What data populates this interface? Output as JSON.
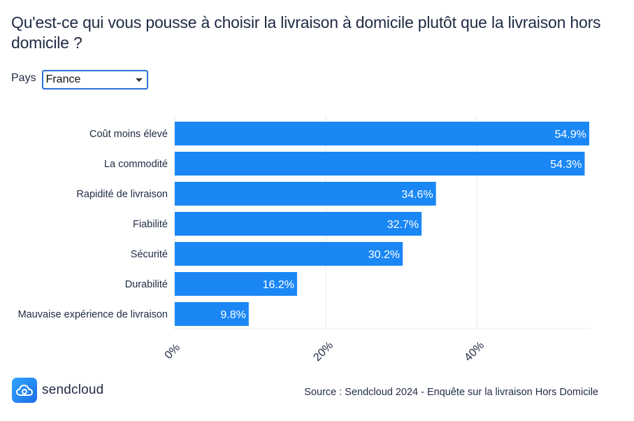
{
  "title": "Qu'est-ce qui vous pousse à choisir la livraison à domicile plutôt que la livraison hors domicile ?",
  "filter": {
    "label": "Pays",
    "selected": "France"
  },
  "chart_data": {
    "type": "bar",
    "orientation": "horizontal",
    "categories": [
      "Coût moins élevé",
      "La commodité",
      "Rapidité de livraison",
      "Fiabilité",
      "Sécurité",
      "Durabilité",
      "Mauvaise expérience de livraison"
    ],
    "values": [
      54.9,
      54.3,
      34.6,
      32.7,
      30.2,
      16.2,
      9.8
    ],
    "value_labels": [
      "54.9%",
      "54.3%",
      "34.6%",
      "32.7%",
      "30.2%",
      "16.2%",
      "9.8%"
    ],
    "x_ticks": [
      0,
      20,
      40
    ],
    "x_tick_labels": [
      "0%",
      "20%",
      "40%"
    ],
    "xlim": [
      0,
      55
    ],
    "grid": true,
    "bar_color": "#1a87f5"
  },
  "brand": {
    "name": "sendcloud",
    "icon": "cloud-icon"
  },
  "source": "Source : Sendcloud 2024 - Enquête sur la livraison Hors Domicile"
}
